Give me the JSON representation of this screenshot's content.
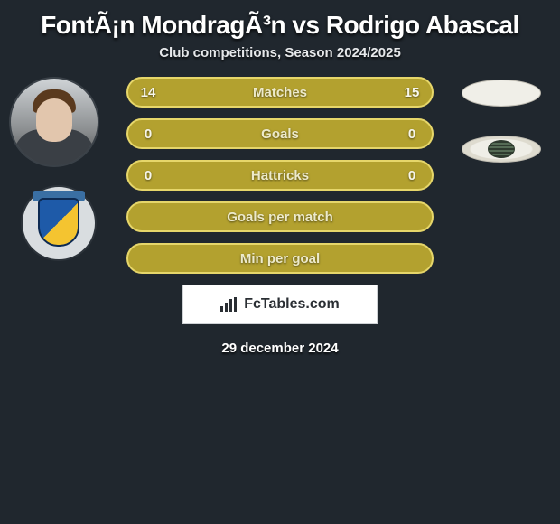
{
  "title": "FontÃ¡n MondragÃ³n vs Rodrigo Abascal",
  "subtitle": "Club competitions, Season 2024/2025",
  "stats": {
    "rows": [
      {
        "left": "14",
        "label": "Matches",
        "right": "15",
        "has_values": true
      },
      {
        "left": "0",
        "label": "Goals",
        "right": "0",
        "has_values": true
      },
      {
        "left": "0",
        "label": "Hattricks",
        "right": "0",
        "has_values": true
      },
      {
        "left": "",
        "label": "Goals per match",
        "right": "",
        "has_values": false
      },
      {
        "left": "",
        "label": "Min per goal",
        "right": "",
        "has_values": false
      }
    ],
    "pill_bg": "#b3a12f",
    "pill_border": "#e6d66a",
    "text_color": "#f7f6ec"
  },
  "branding": {
    "site": "FcTables.com"
  },
  "date": "29 december 2024",
  "colors": {
    "page_bg": "#20272e",
    "title_color": "#ffffff"
  }
}
